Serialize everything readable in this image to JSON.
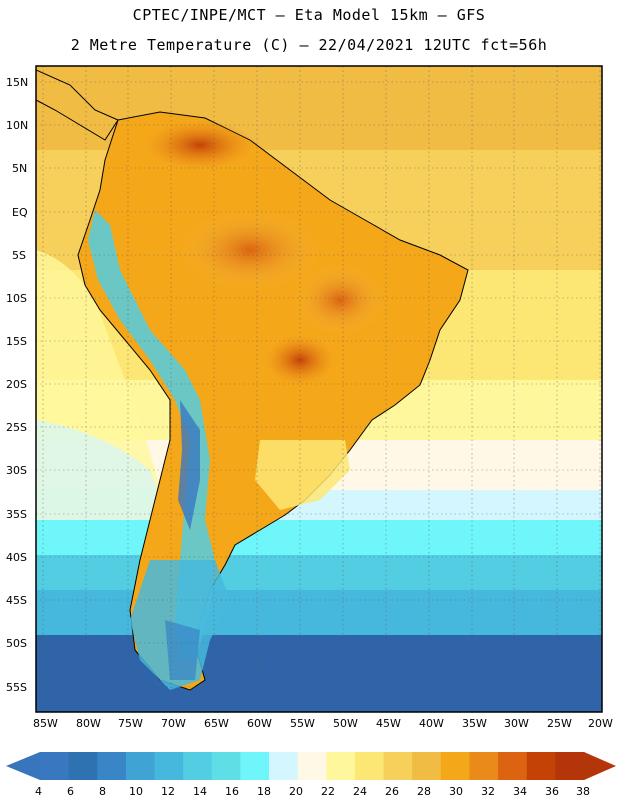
{
  "header": {
    "line1": "CPTEC/INPE/MCT –  Eta Model 15km – GFS",
    "line2": "2 Metre Temperature (C) – 22/04/2021 12UTC fct=56h"
  },
  "axes": {
    "lat_labels": [
      "15N",
      "10N",
      "5N",
      "EQ",
      "5S",
      "10S",
      "15S",
      "20S",
      "25S",
      "30S",
      "35S",
      "40S",
      "45S",
      "50S",
      "55S"
    ],
    "lon_labels": [
      "85W",
      "80W",
      "75W",
      "70W",
      "65W",
      "60W",
      "55W",
      "50W",
      "45W",
      "40W",
      "35W",
      "30W",
      "25W",
      "20W"
    ]
  },
  "legend": {
    "labels": [
      "4",
      "6",
      "8",
      "10",
      "12",
      "14",
      "16",
      "18",
      "20",
      "22",
      "24",
      "26",
      "28",
      "30",
      "32",
      "34",
      "36",
      "38"
    ],
    "colors": [
      "#3978c0",
      "#2e72b2",
      "#3985c6",
      "#3fa4d3",
      "#47b8dd",
      "#52cde2",
      "#5fdee6",
      "#6ef6fa",
      "#d3f6ff",
      "#fff8e6",
      "#fff79c",
      "#fde774",
      "#f6d05a",
      "#f1bc44",
      "#f5a71a",
      "#e98a1a",
      "#dc6410",
      "#c44206",
      "#b5350a"
    ],
    "low_arrow_color": "#3975bd",
    "high_arrow_color": "#b5350a"
  }
}
